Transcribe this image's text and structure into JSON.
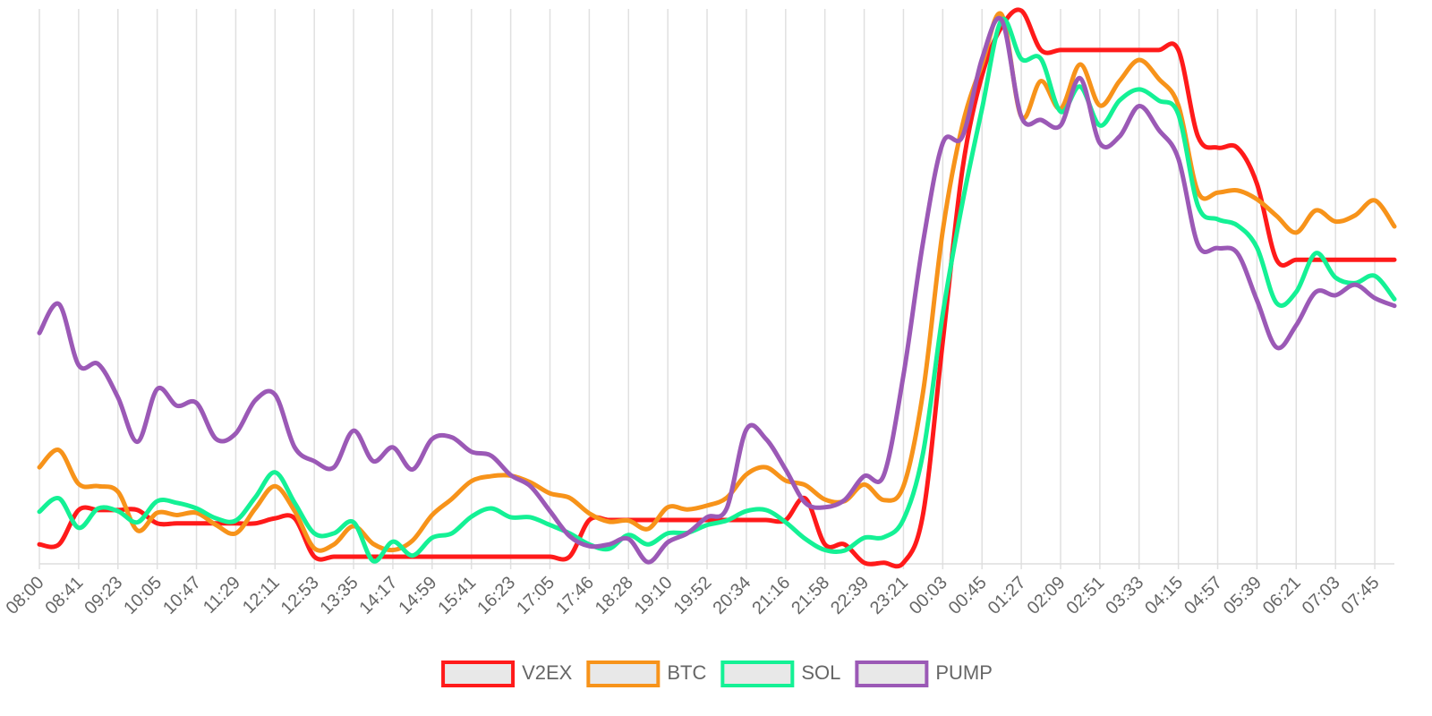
{
  "chart_data": {
    "type": "line",
    "categories": [
      "08:00",
      null,
      "08:41",
      null,
      "09:23",
      null,
      "10:05",
      null,
      "10:47",
      null,
      "11:29",
      null,
      "12:11",
      null,
      "12:53",
      null,
      "13:35",
      null,
      "14:17",
      null,
      "14:59",
      null,
      "15:41",
      null,
      "16:23",
      null,
      "17:05",
      null,
      "17:46",
      null,
      "18:28",
      null,
      "19:10",
      null,
      "19:52",
      null,
      "20:34",
      null,
      "21:16",
      null,
      "21:58",
      null,
      "22:39",
      null,
      "23:21",
      null,
      "00:03",
      null,
      "00:45",
      null,
      "01:27",
      null,
      "02:09",
      null,
      "02:51",
      null,
      "03:33",
      null,
      "04:15",
      null,
      "04:57",
      null,
      "05:39",
      null,
      "06:21",
      null,
      "07:03",
      null,
      "07:45",
      null
    ],
    "series": [
      {
        "name": "V2EX",
        "color": "#ff1a1a",
        "values": [
          3.5,
          3.5,
          9.7,
          9.7,
          9.7,
          9.7,
          7.3,
          7.3,
          7.3,
          7.3,
          7.3,
          7.3,
          8.2,
          8.2,
          1.3,
          1.3,
          1.3,
          1.3,
          1.3,
          1.3,
          1.3,
          1.3,
          1.3,
          1.3,
          1.3,
          1.3,
          1.3,
          1.3,
          7.9,
          7.9,
          7.9,
          7.9,
          7.9,
          7.9,
          7.9,
          7.9,
          7.9,
          7.9,
          7.9,
          11.8,
          3.5,
          3.5,
          0.2,
          0.2,
          0.2,
          9,
          40,
          71,
          88,
          96.8,
          99.7,
          92.6,
          92.6,
          92.6,
          92.6,
          92.6,
          92.6,
          92.6,
          92.6,
          77,
          75,
          75,
          68.5,
          54.8,
          54.8,
          54.8,
          54.8,
          54.8,
          54.8,
          54.8
        ]
      },
      {
        "name": "BTC",
        "color": "#f7931a",
        "values": [
          17.4,
          20.5,
          14.4,
          14,
          13,
          6,
          9.2,
          8.8,
          9.2,
          7,
          5.5,
          10,
          14,
          9.5,
          2.8,
          3.5,
          6.8,
          3.6,
          2.5,
          4.2,
          8.8,
          11.7,
          14.9,
          15.8,
          15.9,
          14.7,
          12.7,
          11.9,
          9.1,
          7.6,
          7.8,
          6.3,
          10.2,
          9.8,
          10.5,
          11.9,
          16.1,
          17.4,
          15,
          14.2,
          11.6,
          11.3,
          14.3,
          11.5,
          14,
          31,
          60,
          79,
          90,
          99,
          80.6,
          87,
          82,
          90,
          82.6,
          87,
          90.8,
          87.4,
          82.6,
          67,
          66.9,
          67.3,
          65.7,
          62.7,
          59.7,
          63.7,
          61.7,
          62.8,
          65.5,
          60.8
        ]
      },
      {
        "name": "SOL",
        "color": "#14f195",
        "values": [
          9.4,
          11.8,
          6.5,
          10,
          9.5,
          7.5,
          11.3,
          11,
          10,
          8.2,
          7.8,
          12,
          16.5,
          11,
          5.5,
          5.5,
          7.5,
          0.5,
          4,
          1.5,
          4.7,
          5.5,
          8.5,
          10,
          8.4,
          8.4,
          7,
          5.5,
          3.5,
          2.7,
          5.2,
          3.5,
          5.5,
          5.6,
          7,
          7.8,
          9.5,
          9.7,
          7.5,
          4.5,
          2.5,
          2.4,
          4.7,
          4.8,
          8,
          20,
          45,
          65,
          82,
          98,
          91,
          91,
          81.5,
          86,
          79,
          83.5,
          85.5,
          83.5,
          81,
          64.5,
          62.1,
          61,
          57,
          47,
          49,
          56,
          51.6,
          50.6,
          51.9,
          47.7
        ]
      },
      {
        "name": "PUMP",
        "color": "#9b59b6",
        "values": [
          41.6,
          46.8,
          35.8,
          36,
          30,
          22,
          31.5,
          28.5,
          29,
          22.5,
          23.5,
          29.5,
          30.5,
          21,
          18.5,
          17.4,
          24,
          18.5,
          21,
          17,
          22.5,
          22.8,
          20.2,
          19.5,
          16,
          14,
          9.5,
          5,
          3.2,
          3.5,
          4.5,
          0.3,
          3.9,
          5.5,
          8.4,
          10,
          24.2,
          22.5,
          17,
          11,
          10.2,
          11.5,
          15.8,
          16,
          34,
          58,
          75.8,
          77,
          91,
          98,
          80.6,
          80,
          79,
          87.5,
          75.8,
          77,
          82.5,
          78.2,
          73,
          57.5,
          56.9,
          56,
          47.5,
          39,
          43,
          49,
          48.4,
          50.3,
          47.9,
          46.5
        ]
      }
    ],
    "ylim": [
      0,
      100
    ],
    "grid": true,
    "legend": "bottom"
  }
}
